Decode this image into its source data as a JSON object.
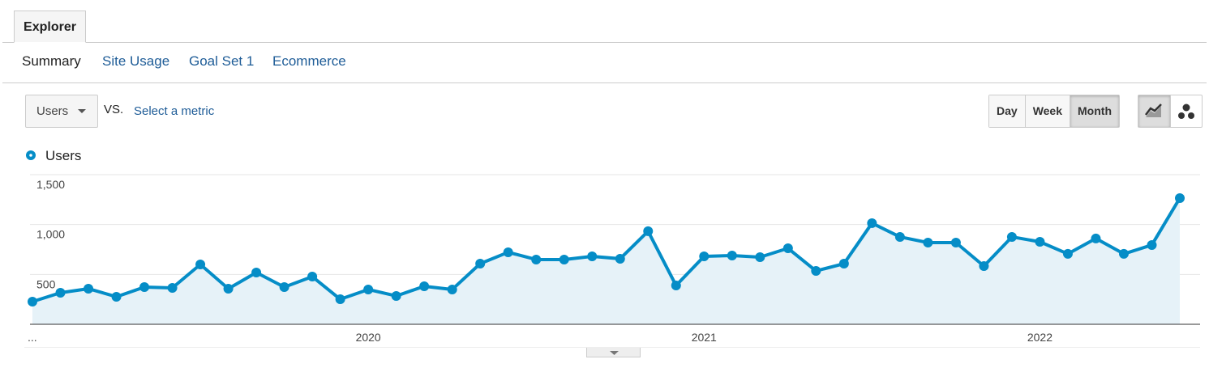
{
  "tabs": [
    "Explorer"
  ],
  "nav": [
    "Summary",
    "Site Usage",
    "Goal Set 1",
    "Ecommerce"
  ],
  "controls": {
    "metric": "Users",
    "vs": "VS.",
    "select_metric": "Select a metric",
    "granularity": [
      "Day",
      "Week",
      "Month"
    ]
  },
  "chart_data": {
    "type": "line",
    "categories": [
      "...",
      null,
      null,
      null,
      null,
      null,
      null,
      null,
      null,
      null,
      null,
      null,
      "2020",
      null,
      null,
      null,
      null,
      null,
      null,
      null,
      null,
      null,
      null,
      null,
      "2021",
      null,
      null,
      null,
      null,
      null,
      null,
      null,
      null,
      null,
      null,
      null,
      "2022",
      null,
      null,
      null,
      null,
      null
    ],
    "series": [
      {
        "name": "Users",
        "color": "#058dc7",
        "values": [
          227,
          316,
          357,
          276,
          373,
          365,
          600,
          357,
          519,
          373,
          478,
          251,
          349,
          284,
          381,
          349,
          608,
          722,
          649,
          649,
          681,
          657,
          933,
          389,
          681,
          689,
          673,
          762,
          535,
          608,
          1014,
          876,
          819,
          819,
          584,
          876,
          827,
          706,
          860,
          706,
          795,
          1265
        ]
      }
    ],
    "ylim": [
      0,
      1500
    ],
    "yticks": [
      500,
      {
        "value": 1000,
        "label": "1,000"
      },
      {
        "value": 1500,
        "label": "1,500"
      }
    ],
    "grid": true
  }
}
